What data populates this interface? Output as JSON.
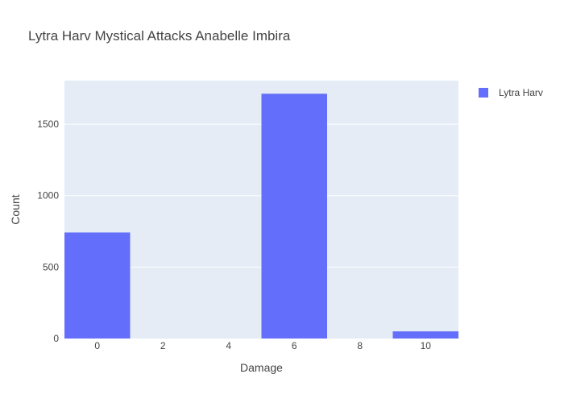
{
  "chart_data": {
    "type": "bar",
    "title": "Lytra Harv Mystical Attacks Anabelle Imbira",
    "xlabel": "Damage",
    "ylabel": "Count",
    "x_range": [
      -1,
      11
    ],
    "x_ticks": [
      0,
      2,
      4,
      6,
      8,
      10
    ],
    "ylim": [
      0,
      1805
    ],
    "y_ticks": [
      0,
      500,
      1000,
      1500
    ],
    "bin_width": 2,
    "series": [
      {
        "name": "Lytra Harv",
        "color": "#636efa",
        "bins": [
          {
            "x": 0,
            "value": 742
          },
          {
            "x": 2,
            "value": 0
          },
          {
            "x": 4,
            "value": 0
          },
          {
            "x": 6,
            "value": 1713
          },
          {
            "x": 8,
            "value": 0
          },
          {
            "x": 10,
            "value": 50
          }
        ]
      }
    ],
    "legend_position": "top-right",
    "grid": true,
    "plot_background": "#e5ecf6"
  }
}
